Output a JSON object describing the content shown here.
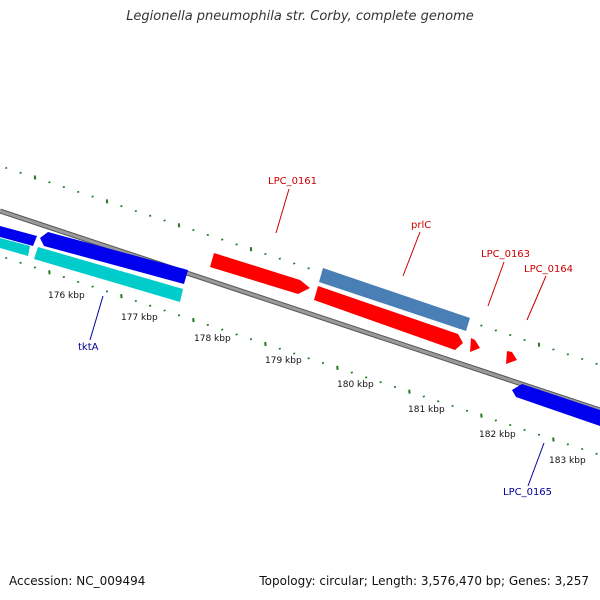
{
  "title": "Legionella pneumophila str. Corby, complete genome",
  "footer": {
    "accession": "Accession: NC_009494",
    "summary": "Topology: circular; Length: 3,576,470 bp; Genes: 3,257"
  },
  "colors": {
    "backbone": "#8a8a8a",
    "tick": "#1f7a1f",
    "forward_gene": "#ff0000",
    "reverse_gene": "#0000ee",
    "rrna": "#00cccc",
    "pseudo": "#4a7fb5",
    "label_forward": "#cc0000",
    "label_reverse": "#000099"
  },
  "scale_labels": [
    "176 kbp",
    "177 kbp",
    "178 kbp",
    "179 kbp",
    "180 kbp",
    "181 kbp",
    "182 kbp",
    "183 kbp"
  ],
  "genes": [
    {
      "label": "",
      "kind": "reverse"
    },
    {
      "label": "",
      "kind": "reverse"
    },
    {
      "label": "tktA",
      "kind": "rrna"
    },
    {
      "label": "LPC_0161",
      "kind": "forward"
    },
    {
      "label": "prlC",
      "kind": "pseudo"
    },
    {
      "label": "",
      "kind": "forward"
    },
    {
      "label": "LPC_0163",
      "kind": "forward"
    },
    {
      "label": "LPC_0164",
      "kind": "forward"
    },
    {
      "label": "LPC_0165",
      "kind": "reverse"
    }
  ]
}
